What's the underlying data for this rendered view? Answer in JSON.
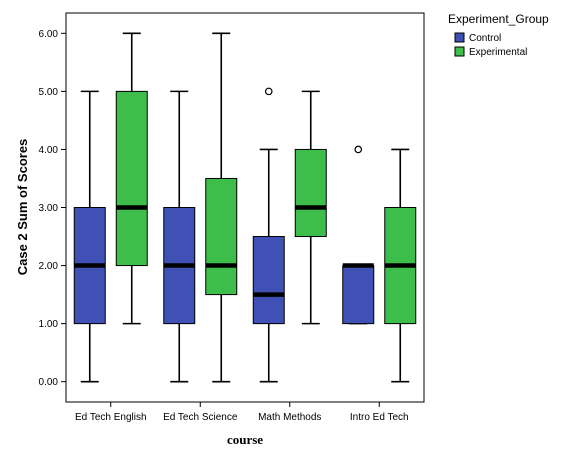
{
  "chart_data": {
    "type": "boxplot",
    "title": "",
    "xlabel": "course",
    "ylabel": "Case 2 Sum of Scores",
    "ylim": [
      -0.35,
      6.35
    ],
    "yticks": [
      "0.00",
      "1.00",
      "2.00",
      "3.00",
      "4.00",
      "5.00",
      "6.00"
    ],
    "categories": [
      "Ed Tech English",
      "Ed Tech Science",
      "Math Methods",
      "Intro Ed Tech"
    ],
    "legend": {
      "title": "Experiment_Group",
      "placement": "top-right-outside"
    },
    "series": [
      {
        "name": "Control",
        "color": "#3F51B5",
        "boxes": [
          {
            "min": 0,
            "q1": 1,
            "median": 2,
            "q3": 3,
            "max": 5,
            "outliers": []
          },
          {
            "min": 0,
            "q1": 1,
            "median": 2,
            "q3": 3,
            "max": 5,
            "outliers": []
          },
          {
            "min": 0,
            "q1": 1,
            "median": 1.5,
            "q3": 2.5,
            "max": 4,
            "outliers": [
              5
            ]
          },
          {
            "min": 1,
            "q1": 1,
            "median": 2,
            "q3": 2,
            "max": 2,
            "outliers": [
              4
            ]
          }
        ]
      },
      {
        "name": "Experimental",
        "color": "#3DBE4B",
        "boxes": [
          {
            "min": 1,
            "q1": 2,
            "median": 3,
            "q3": 5,
            "max": 6,
            "outliers": []
          },
          {
            "min": 0,
            "q1": 1.5,
            "median": 2,
            "q3": 3.5,
            "max": 6,
            "outliers": []
          },
          {
            "min": 1,
            "q1": 2.5,
            "median": 3,
            "q3": 4,
            "max": 5,
            "outliers": []
          },
          {
            "min": 0,
            "q1": 1,
            "median": 2,
            "q3": 3,
            "max": 4,
            "outliers": []
          }
        ]
      }
    ]
  }
}
